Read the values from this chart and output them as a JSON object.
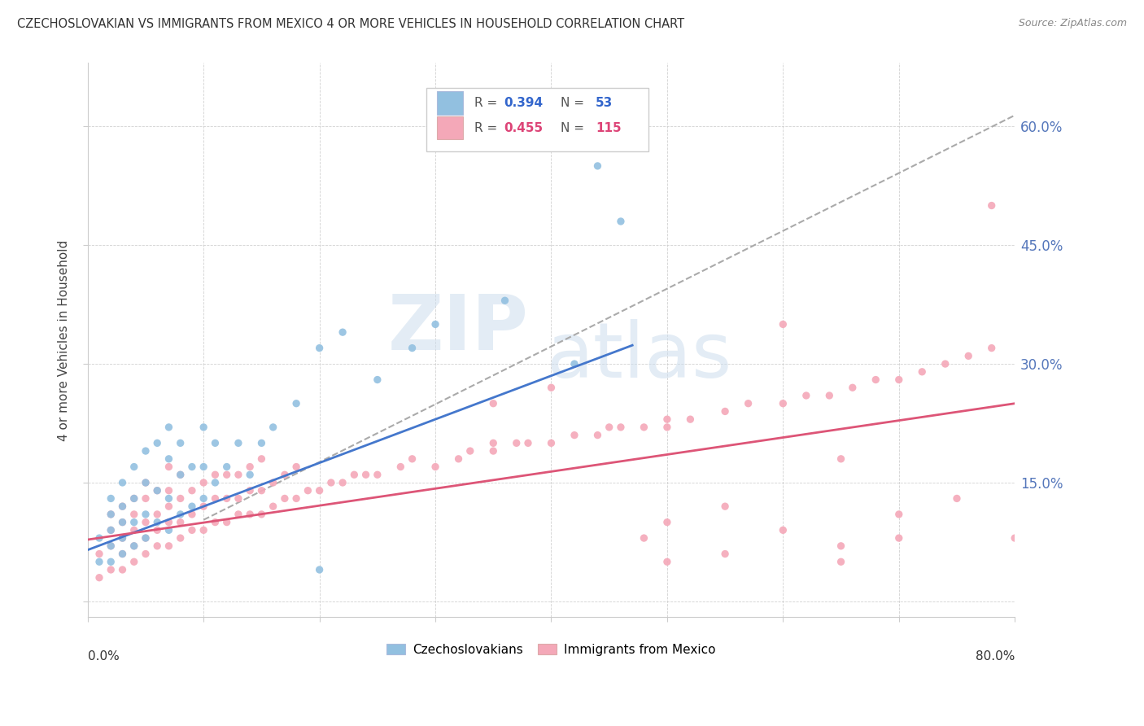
{
  "title": "CZECHOSLOVAKIAN VS IMMIGRANTS FROM MEXICO 4 OR MORE VEHICLES IN HOUSEHOLD CORRELATION CHART",
  "source": "Source: ZipAtlas.com",
  "ylabel": "4 or more Vehicles in Household",
  "right_yticks": [
    "60.0%",
    "45.0%",
    "30.0%",
    "15.0%"
  ],
  "right_ytick_vals": [
    0.6,
    0.45,
    0.3,
    0.15
  ],
  "xlim": [
    0.0,
    0.8
  ],
  "ylim": [
    -0.02,
    0.68
  ],
  "blue_color": "#92c0e0",
  "pink_color": "#f4a8b8",
  "blue_line_color": "#4477cc",
  "pink_line_color": "#dd5577",
  "dashed_line_color": "#aaaaaa",
  "background_color": "#ffffff",
  "R1": 0.394,
  "N1": 53,
  "R2": 0.455,
  "N2": 115,
  "blue_x": [
    0.01,
    0.01,
    0.02,
    0.02,
    0.02,
    0.02,
    0.02,
    0.03,
    0.03,
    0.03,
    0.03,
    0.03,
    0.04,
    0.04,
    0.04,
    0.04,
    0.05,
    0.05,
    0.05,
    0.05,
    0.06,
    0.06,
    0.06,
    0.07,
    0.07,
    0.07,
    0.07,
    0.08,
    0.08,
    0.08,
    0.09,
    0.09,
    0.1,
    0.1,
    0.1,
    0.11,
    0.11,
    0.12,
    0.13,
    0.14,
    0.15,
    0.16,
    0.18,
    0.2,
    0.22,
    0.25,
    0.28,
    0.3,
    0.36,
    0.42,
    0.44,
    0.46,
    0.2
  ],
  "blue_y": [
    0.05,
    0.08,
    0.05,
    0.07,
    0.09,
    0.11,
    0.13,
    0.06,
    0.08,
    0.1,
    0.12,
    0.15,
    0.07,
    0.1,
    0.13,
    0.17,
    0.08,
    0.11,
    0.15,
    0.19,
    0.1,
    0.14,
    0.2,
    0.09,
    0.13,
    0.18,
    0.22,
    0.11,
    0.16,
    0.2,
    0.12,
    0.17,
    0.13,
    0.17,
    0.22,
    0.15,
    0.2,
    0.17,
    0.2,
    0.16,
    0.2,
    0.22,
    0.25,
    0.32,
    0.34,
    0.28,
    0.32,
    0.35,
    0.38,
    0.3,
    0.55,
    0.48,
    0.04
  ],
  "pink_x": [
    0.01,
    0.01,
    0.02,
    0.02,
    0.02,
    0.02,
    0.03,
    0.03,
    0.03,
    0.03,
    0.03,
    0.04,
    0.04,
    0.04,
    0.04,
    0.04,
    0.05,
    0.05,
    0.05,
    0.05,
    0.05,
    0.06,
    0.06,
    0.06,
    0.06,
    0.07,
    0.07,
    0.07,
    0.07,
    0.07,
    0.08,
    0.08,
    0.08,
    0.08,
    0.09,
    0.09,
    0.09,
    0.1,
    0.1,
    0.1,
    0.11,
    0.11,
    0.11,
    0.12,
    0.12,
    0.12,
    0.13,
    0.13,
    0.13,
    0.14,
    0.14,
    0.14,
    0.15,
    0.15,
    0.15,
    0.16,
    0.16,
    0.17,
    0.17,
    0.18,
    0.18,
    0.19,
    0.2,
    0.21,
    0.22,
    0.23,
    0.24,
    0.25,
    0.27,
    0.28,
    0.3,
    0.32,
    0.33,
    0.35,
    0.37,
    0.38,
    0.4,
    0.42,
    0.44,
    0.46,
    0.48,
    0.5,
    0.52,
    0.55,
    0.57,
    0.6,
    0.62,
    0.64,
    0.66,
    0.68,
    0.7,
    0.72,
    0.74,
    0.76,
    0.78,
    0.48,
    0.5,
    0.55,
    0.6,
    0.65,
    0.7,
    0.35,
    0.4,
    0.45,
    0.5,
    0.55,
    0.6,
    0.65,
    0.7,
    0.75,
    0.78,
    0.8,
    0.35,
    0.5,
    0.65
  ],
  "pink_y": [
    0.03,
    0.06,
    0.04,
    0.07,
    0.09,
    0.11,
    0.04,
    0.06,
    0.08,
    0.1,
    0.12,
    0.05,
    0.07,
    0.09,
    0.11,
    0.13,
    0.06,
    0.08,
    0.1,
    0.13,
    0.15,
    0.07,
    0.09,
    0.11,
    0.14,
    0.07,
    0.1,
    0.12,
    0.14,
    0.17,
    0.08,
    0.1,
    0.13,
    0.16,
    0.09,
    0.11,
    0.14,
    0.09,
    0.12,
    0.15,
    0.1,
    0.13,
    0.16,
    0.1,
    0.13,
    0.16,
    0.11,
    0.13,
    0.16,
    0.11,
    0.14,
    0.17,
    0.11,
    0.14,
    0.18,
    0.12,
    0.15,
    0.13,
    0.16,
    0.13,
    0.17,
    0.14,
    0.14,
    0.15,
    0.15,
    0.16,
    0.16,
    0.16,
    0.17,
    0.18,
    0.17,
    0.18,
    0.19,
    0.19,
    0.2,
    0.2,
    0.2,
    0.21,
    0.21,
    0.22,
    0.22,
    0.23,
    0.23,
    0.24,
    0.25,
    0.25,
    0.26,
    0.26,
    0.27,
    0.28,
    0.28,
    0.29,
    0.3,
    0.31,
    0.32,
    0.08,
    0.05,
    0.06,
    0.09,
    0.05,
    0.08,
    0.25,
    0.27,
    0.22,
    0.1,
    0.12,
    0.35,
    0.07,
    0.11,
    0.13,
    0.5,
    0.08,
    0.2,
    0.22,
    0.18
  ]
}
